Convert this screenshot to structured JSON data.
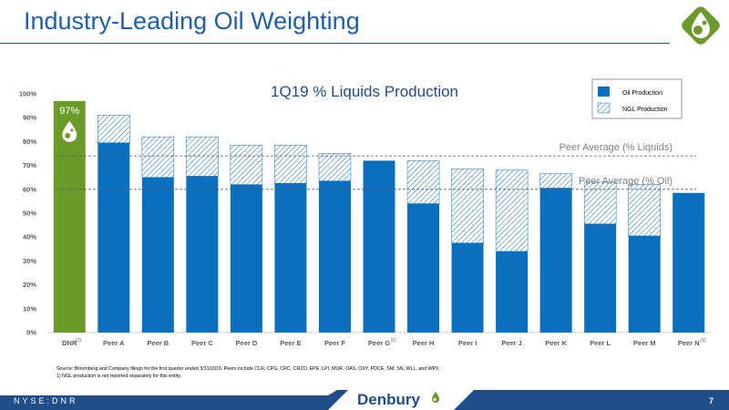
{
  "slide": {
    "title": "Industry-Leading Oil Weighting",
    "page_number": "7",
    "ticker": "NYSE:DNR",
    "brand": "Denbury"
  },
  "footnotes": {
    "source": "Source: Bloomberg and Company filings for the first quarter ended 3/31/2019. Peers include CLR, CPG, CRC, CRZO, EPE, LPI, MUR, OAS, OXY, PDCE, SM, SN, WLL, and WPX.",
    "note1": "1)      NGL production is not reported separately for this entity."
  },
  "colors": {
    "title": "#1f5fa8",
    "oil": "#0b6fc0",
    "ngl_hatch": "#0b6fc0",
    "dnr": "#6a9a2a",
    "footer_bg": "#1f4e8a",
    "chart_title": "#1f4e8a"
  },
  "chart_data": {
    "type": "bar",
    "stacked": true,
    "title": "1Q19 % Liquids Production",
    "categories": [
      "DNR",
      "Peer A",
      "Peer B",
      "Peer C",
      "Peer D",
      "Peer E",
      "Peer F",
      "Peer G",
      "Peer H",
      "Peer I",
      "Peer J",
      "Peer K",
      "Peer L",
      "Peer M",
      "Peer N"
    ],
    "category_footnotes": [
      "(1)",
      "",
      "",
      "",
      "",
      "",
      "",
      "(1)",
      "",
      "",
      "",
      "",
      "",
      "",
      "(1)"
    ],
    "series": [
      {
        "name": "Oil Production",
        "values": [
          97,
          79.5,
          65,
          65.5,
          62,
          62.5,
          63.5,
          72,
          54,
          37.5,
          34,
          60.5,
          45.5,
          40.5,
          58.5
        ]
      },
      {
        "name": "NGL Production",
        "values": [
          0,
          11.5,
          17,
          16.5,
          16.5,
          16,
          11.5,
          0,
          18,
          31,
          34,
          6,
          17.5,
          21.5,
          0
        ]
      }
    ],
    "dnr_label": "97%",
    "reference_lines": [
      {
        "label": "Peer Average (% Liquids)",
        "value": 74
      },
      {
        "label": "Peer Average (% Oil)",
        "value": 60
      }
    ],
    "ylim": [
      0,
      100
    ],
    "yticks": [
      "0%",
      "10%",
      "20%",
      "30%",
      "40%",
      "50%",
      "60%",
      "70%",
      "80%",
      "90%",
      "100%"
    ],
    "legend_position": "top-right",
    "grid": false
  }
}
